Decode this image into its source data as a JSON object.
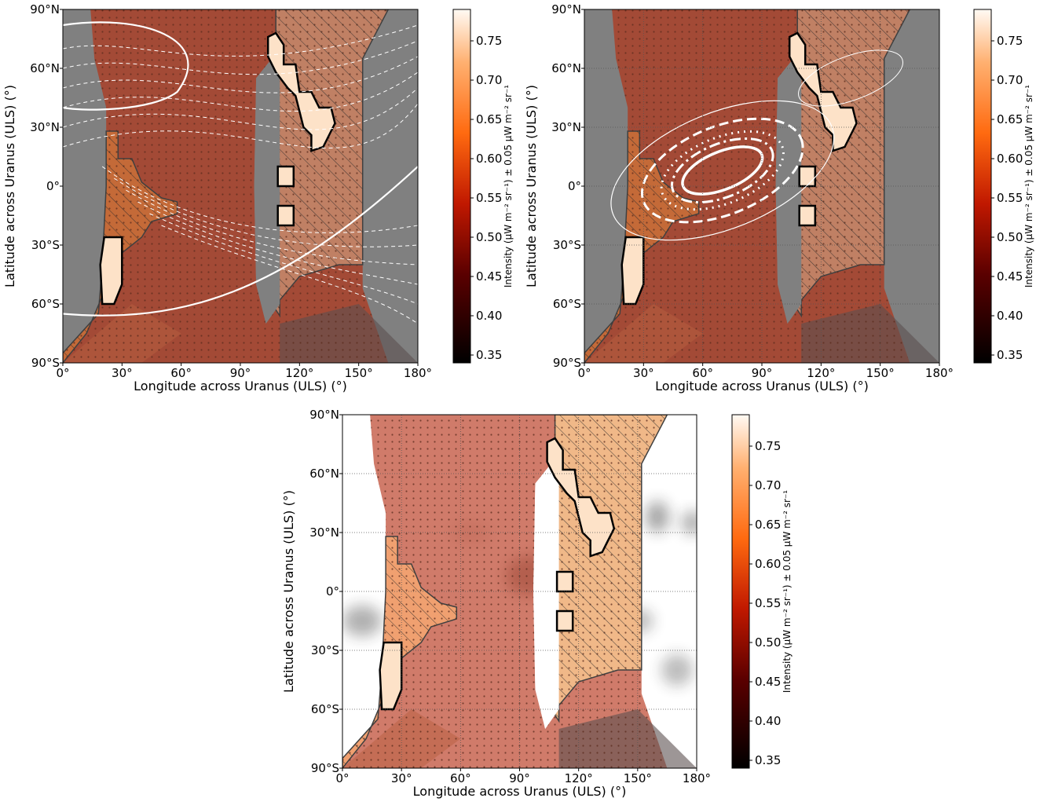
{
  "chart_data": [
    {
      "type": "heatmap",
      "xlabel": "Longitude across Uranus (ULS) (°)",
      "ylabel": "Latitude across Uranus (ULS) (°)",
      "xlim": [
        0,
        180
      ],
      "ylim": [
        -90,
        90
      ],
      "x_ticks": [
        "0°",
        "30°",
        "60°",
        "90°",
        "120°",
        "150°",
        "180°"
      ],
      "y_ticks": [
        "90°S",
        "60°S",
        "30°S",
        "0°",
        "30°N",
        "60°N",
        "90°N"
      ],
      "colorbar": {
        "label": "Intensity (μW m⁻² sr⁻¹) ± 0.05 μW m⁻² sr⁻¹",
        "range": [
          0.34,
          0.79
        ],
        "ticks": [
          0.35,
          0.4,
          0.45,
          0.5,
          0.55,
          0.6,
          0.65,
          0.7,
          0.75
        ]
      },
      "overlay": "white solid/dashed contours of a model field, high-latitude north and low-latitude south"
    },
    {
      "type": "heatmap",
      "xlabel": "Longitude across Uranus (ULS) (°)",
      "ylabel": "Latitude across Uranus (ULS) (°)",
      "xlim": [
        0,
        180
      ],
      "ylim": [
        -90,
        90
      ],
      "x_ticks": [
        "0°",
        "30°",
        "60°",
        "90°",
        "120°",
        "150°",
        "180°"
      ],
      "y_ticks": [
        "90°S",
        "60°S",
        "30°S",
        "0°",
        "30°N",
        "60°N",
        "90°N"
      ],
      "grid": true,
      "colorbar": {
        "label": "Intensity (μW m⁻² sr⁻¹) ± 0.05 μW m⁻² sr⁻¹",
        "range": [
          0.34,
          0.79
        ],
        "ticks": [
          0.35,
          0.4,
          0.45,
          0.5,
          0.55,
          0.6,
          0.65,
          0.7,
          0.75
        ]
      },
      "overlay": "nested white oval contours (solid, dash-dot, dotted, dashed, thin) centered near 70° lon, 10° lat"
    },
    {
      "type": "heatmap",
      "xlabel": "Longitude across Uranus (ULS) (°)",
      "ylabel": "Latitude across Uranus (ULS) (°)",
      "xlim": [
        0,
        180
      ],
      "ylim": [
        -90,
        90
      ],
      "x_ticks": [
        "0°",
        "30°",
        "60°",
        "90°",
        "120°",
        "150°",
        "180°"
      ],
      "y_ticks": [
        "90°S",
        "60°S",
        "30°S",
        "0°",
        "30°N",
        "60°N",
        "90°N"
      ],
      "grid": true,
      "colorbar": {
        "label": "Intensity (μW m⁻² sr⁻¹) ± 0.05 μW m⁻² sr⁻¹",
        "range": [
          0.34,
          0.79
        ],
        "ticks": [
          0.35,
          0.4,
          0.45,
          0.5,
          0.55,
          0.6,
          0.65,
          0.7,
          0.75
        ]
      },
      "overlay": "grey blurred blobs superposed on the intensity map"
    }
  ]
}
